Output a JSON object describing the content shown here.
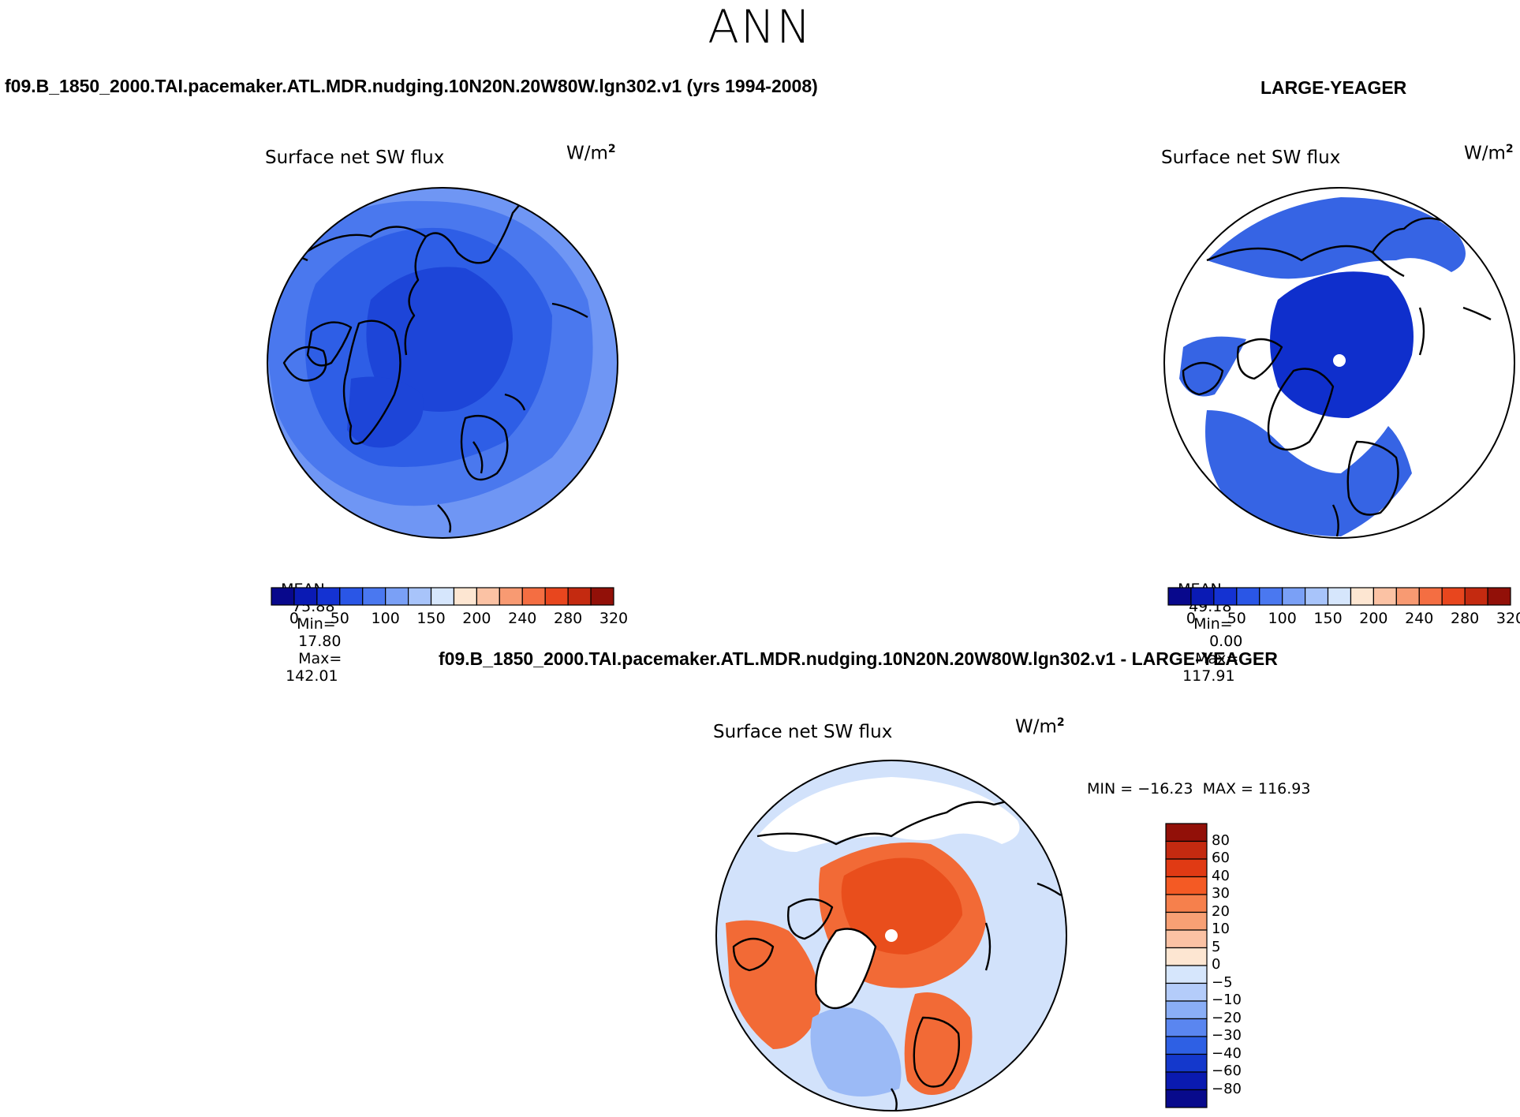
{
  "figure": {
    "season": "ANN",
    "left_title": "f09.B_1850_2000.TAI.pacemaker.ATL.MDR.nudging.10N20N.20W80W.lgn302.v1 (yrs 1994-2008)",
    "right_title": "LARGE-YEAGER",
    "diff_title": "f09.B_1850_2000.TAI.pacemaker.ATL.MDR.nudging.10N20N.20W80W.lgn302.v1 - LARGE-YEAGER"
  },
  "panels": [
    {
      "id": "model",
      "variable": "Surface net SW flux",
      "units": "W/m",
      "units_sup": "2",
      "mean_label": "MEAN=",
      "mean": "75.88",
      "min_label": "Min=",
      "min": "17.80",
      "max_label": "Max=",
      "max": "142.01"
    },
    {
      "id": "obs",
      "variable": "Surface net SW flux",
      "units": "W/m",
      "units_sup": "2",
      "mean_label": "MEAN=",
      "mean": "49.18",
      "min_label": "Min=",
      "min": "0.00",
      "max_label": "Max=",
      "max": "117.91"
    },
    {
      "id": "diff",
      "variable": "Surface net SW flux",
      "units": "W/m",
      "units_sup": "2",
      "minmax_text": "MIN = −16.23  MAX = 116.93"
    }
  ],
  "colorbar_abs": {
    "colors": [
      "#08088c",
      "#0a1ab4",
      "#1432d2",
      "#2a56e6",
      "#4a78f0",
      "#7aa0f6",
      "#a8c4fa",
      "#d6e6fc",
      "#fde6d2",
      "#fbc2a4",
      "#f89a72",
      "#f46e42",
      "#e8461e",
      "#c42a10",
      "#921008"
    ],
    "tick_labels": [
      "0",
      "50",
      "100",
      "150",
      "200",
      "240",
      "280",
      "320"
    ]
  },
  "colorbar_diff": {
    "colors": [
      "#921008",
      "#c42a10",
      "#e03a14",
      "#f45a24",
      "#f6804c",
      "#f8a074",
      "#fbc2a4",
      "#fde6d2",
      "#d6e6fc",
      "#b4ccfa",
      "#8aaef6",
      "#5a86f0",
      "#2e60e4",
      "#1438cc",
      "#0a1ab0",
      "#080a8c"
    ],
    "tick_labels": [
      "80",
      "60",
      "40",
      "30",
      "20",
      "10",
      "5",
      "0",
      "−5",
      "−10",
      "−20",
      "−30",
      "−40",
      "−60",
      "−80"
    ]
  },
  "map_colors": {
    "model_outer": "#6f96f4",
    "model_mid": "#4a78ee",
    "model_inner": "#2e5ee6",
    "model_core": "#1d45d8",
    "obs_ocean": "#3664e4",
    "obs_core": "#0f2fcc",
    "diff_ocean": "#d2e2fb",
    "diff_arctic": "#f26a36",
    "diff_arctic_hi": "#e94e1c",
    "diff_blue": "#9bbaf6",
    "land_outline": "#000000",
    "pole_marker": "#ffffff"
  }
}
